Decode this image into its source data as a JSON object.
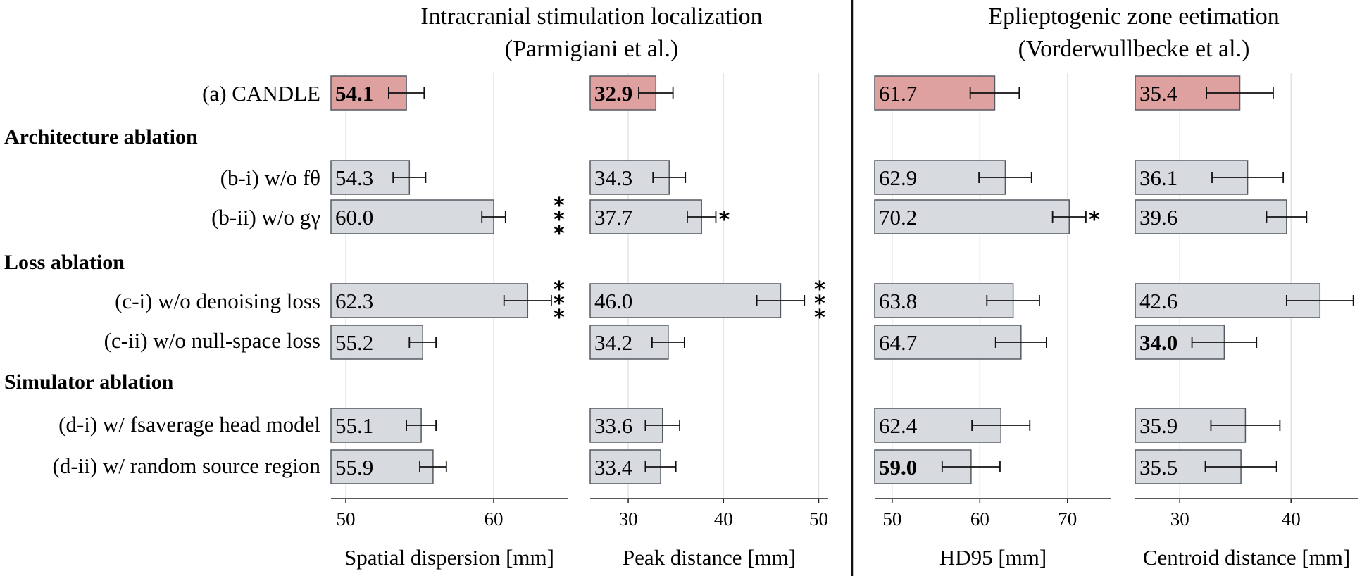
{
  "groups": [
    {
      "title_lines": [
        "Intracranial stimulation localization",
        "(Parmigiani et al.)"
      ]
    },
    {
      "title_lines": [
        "Eplieptogenic zone eetimation",
        "(Vorderwullbecke et al.)"
      ]
    }
  ],
  "rows": [
    {
      "label": "(a) CANDLE"
    },
    {
      "label": "Architecture ablation",
      "section": true
    },
    {
      "label": "(b-i) w/o fθ"
    },
    {
      "label": "(b-ii) w/o gγ"
    },
    {
      "label": "Loss ablation",
      "section": true
    },
    {
      "label": "(c-i) w/o denoising loss"
    },
    {
      "label": "(c-ii) w/o null-space loss"
    },
    {
      "label": "Simulator ablation",
      "section": true
    },
    {
      "label": "(d-i) w/ fsaverage head model"
    },
    {
      "label": "(d-ii) w/ random source region"
    }
  ],
  "colors": {
    "highlight": "#dfa0a0",
    "bar": "#d7dade",
    "edge": "#555a62",
    "grid": "#e4e4e4"
  },
  "chart_data": [
    {
      "type": "bar",
      "xlabel": "Spatial dispersion [mm]",
      "xlim": [
        49,
        65
      ],
      "ticks": [
        50,
        60
      ],
      "categories": [
        "(a) CANDLE",
        "(b-i) w/o fθ",
        "(b-ii) w/o gγ",
        "(c-i) w/o denoising loss",
        "(c-ii) w/o null-space loss",
        "(d-i) w/ fsaverage head model",
        "(d-ii) w/ random source region"
      ],
      "values": [
        54.1,
        54.3,
        60.0,
        62.3,
        55.2,
        55.1,
        55.9
      ],
      "value_labels": [
        "54.1",
        "54.3",
        "60.0",
        "62.3",
        "55.2",
        "55.1",
        "55.9"
      ],
      "errors": [
        1.2,
        1.1,
        0.8,
        1.6,
        0.9,
        1.0,
        0.9
      ],
      "best_index": 0,
      "significance": [
        "",
        "",
        "***",
        "***",
        "",
        "",
        ""
      ]
    },
    {
      "type": "bar",
      "xlabel": "Peak distance [mm]",
      "xlim": [
        26,
        51
      ],
      "ticks": [
        30,
        40,
        50
      ],
      "categories": [
        "(a) CANDLE",
        "(b-i) w/o fθ",
        "(b-ii) w/o gγ",
        "(c-i) w/o denoising loss",
        "(c-ii) w/o null-space loss",
        "(d-i) w/ fsaverage head model",
        "(d-ii) w/ random source region"
      ],
      "values": [
        32.9,
        34.3,
        37.7,
        46.0,
        34.2,
        33.6,
        33.4
      ],
      "value_labels": [
        "32.9",
        "34.3",
        "37.7",
        "46.0",
        "34.2",
        "33.6",
        "33.4"
      ],
      "errors": [
        1.8,
        1.7,
        1.5,
        2.5,
        1.7,
        1.8,
        1.6
      ],
      "best_index": 0,
      "significance": [
        "",
        "",
        "*",
        "***",
        "",
        "",
        ""
      ]
    },
    {
      "type": "bar",
      "xlabel": "HD95 [mm]",
      "xlim": [
        48,
        75
      ],
      "ticks": [
        50,
        60,
        70
      ],
      "categories": [
        "(a) CANDLE",
        "(b-i) w/o fθ",
        "(b-ii) w/o gγ",
        "(c-i) w/o denoising loss",
        "(c-ii) w/o null-space loss",
        "(d-i) w/ fsaverage head model",
        "(d-ii) w/ random source region"
      ],
      "values": [
        61.7,
        62.9,
        70.2,
        63.8,
        64.7,
        62.4,
        59.0
      ],
      "value_labels": [
        "61.7",
        "62.9",
        "70.2",
        "63.8",
        "64.7",
        "62.4",
        "59.0"
      ],
      "errors": [
        2.8,
        3.0,
        1.9,
        3.0,
        2.9,
        3.3,
        3.3
      ],
      "best_index": 6,
      "significance": [
        "",
        "",
        "*",
        "",
        "",
        "",
        ""
      ]
    },
    {
      "type": "bar",
      "xlabel": "Centroid distance [mm]",
      "xlim": [
        26,
        46
      ],
      "ticks": [
        30,
        40
      ],
      "categories": [
        "(a) CANDLE",
        "(b-i) w/o fθ",
        "(b-ii) w/o gγ",
        "(c-i) w/o denoising loss",
        "(c-ii) w/o null-space loss",
        "(d-i) w/ fsaverage head model",
        "(d-ii) w/ random source region"
      ],
      "values": [
        35.4,
        36.1,
        39.6,
        42.6,
        34.0,
        35.9,
        35.5
      ],
      "value_labels": [
        "35.4",
        "36.1",
        "39.6",
        "42.6",
        "34.0",
        "35.9",
        "35.5"
      ],
      "errors": [
        3.0,
        3.2,
        1.8,
        3.0,
        2.9,
        3.1,
        3.2
      ],
      "best_index": 4,
      "significance": [
        "",
        "",
        "",
        "",
        "",
        "",
        ""
      ]
    }
  ]
}
